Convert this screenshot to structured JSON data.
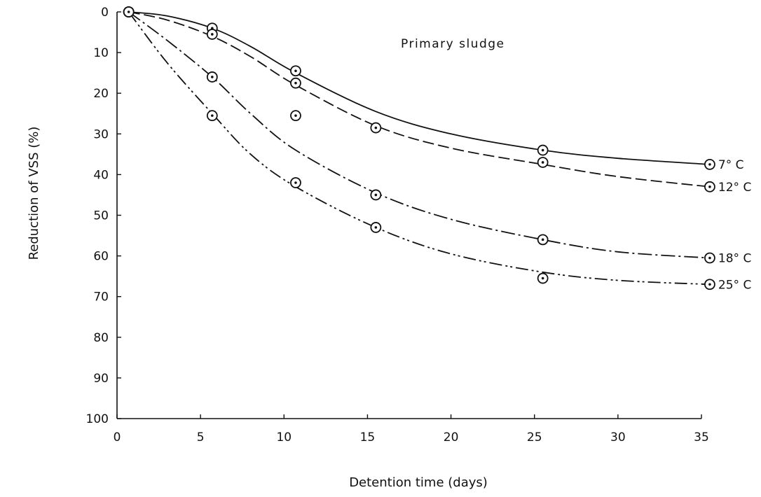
{
  "chart_data": {
    "type": "line",
    "title": "Primary sludge",
    "xlabel": "Detention  time  (days)",
    "ylabel": "Reduction of VSS (%)",
    "xlim": [
      0,
      35
    ],
    "ylim": [
      0,
      100
    ],
    "y_inverted": true,
    "grid": false,
    "xticks": [
      0,
      5,
      10,
      15,
      20,
      25,
      30,
      35
    ],
    "yticks": [
      0,
      10,
      20,
      30,
      40,
      50,
      60,
      70,
      80,
      90,
      100
    ],
    "marker": "circle-dot",
    "series": [
      {
        "name": "7° C",
        "line_style": "solid",
        "points": [
          [
            0.7,
            0
          ],
          [
            5.7,
            4
          ],
          [
            10.7,
            14.5
          ],
          [
            25.5,
            34
          ],
          [
            35.5,
            37.5
          ]
        ],
        "curve": [
          [
            0.7,
            0
          ],
          [
            3,
            1
          ],
          [
            5.7,
            4
          ],
          [
            8,
            8.5
          ],
          [
            10.7,
            15
          ],
          [
            15.5,
            24.5
          ],
          [
            20,
            30
          ],
          [
            25.5,
            34
          ],
          [
            30,
            36
          ],
          [
            35.5,
            37.5
          ]
        ]
      },
      {
        "name": "12° C",
        "line_style": "dashed",
        "points": [
          [
            0.7,
            0
          ],
          [
            5.7,
            5.5
          ],
          [
            10.7,
            17.5
          ],
          [
            15.5,
            28.5
          ],
          [
            25.5,
            37
          ],
          [
            35.5,
            43
          ]
        ],
        "curve": [
          [
            0.7,
            0
          ],
          [
            3,
            2
          ],
          [
            5.7,
            6
          ],
          [
            8,
            11
          ],
          [
            10.7,
            18
          ],
          [
            15.5,
            28
          ],
          [
            20,
            33.5
          ],
          [
            25.5,
            37.5
          ],
          [
            30,
            40.5
          ],
          [
            35.5,
            43
          ]
        ]
      },
      {
        "name": "18° C",
        "line_style": "dash-dot",
        "points": [
          [
            0.7,
            0
          ],
          [
            5.7,
            16
          ],
          [
            10.7,
            25.5
          ],
          [
            15.5,
            45
          ],
          [
            25.5,
            56
          ],
          [
            35.5,
            60.5
          ]
        ],
        "curve": [
          [
            0.7,
            0
          ],
          [
            3,
            7
          ],
          [
            5.7,
            16
          ],
          [
            8,
            25
          ],
          [
            10.7,
            34
          ],
          [
            15.5,
            44.5
          ],
          [
            20,
            51
          ],
          [
            25.5,
            56
          ],
          [
            30,
            59
          ],
          [
            35.5,
            60.5
          ]
        ]
      },
      {
        "name": "25° C",
        "line_style": "dash-dot-dot",
        "points": [
          [
            0.7,
            0
          ],
          [
            5.7,
            25.5
          ],
          [
            10.7,
            42
          ],
          [
            15.5,
            53
          ],
          [
            25.5,
            65.5
          ],
          [
            35.5,
            67
          ]
        ],
        "curve": [
          [
            0.7,
            0
          ],
          [
            3,
            12.5
          ],
          [
            5.7,
            25
          ],
          [
            8,
            35
          ],
          [
            10.7,
            43
          ],
          [
            15.5,
            53
          ],
          [
            20,
            59.5
          ],
          [
            25.5,
            64
          ],
          [
            30,
            66
          ],
          [
            35.5,
            67
          ]
        ]
      }
    ]
  }
}
